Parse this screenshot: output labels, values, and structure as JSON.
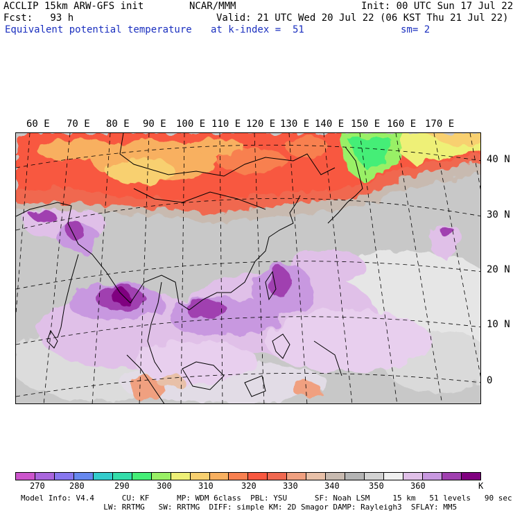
{
  "header": {
    "line1_left": "ACCLIP 15km ARW-GFS init",
    "line1_mid": "NCAR/MMM",
    "line1_right": "Init: 00 UTC Sun 17 Jul 22",
    "line2_left": "Fcst:   93 h",
    "line2_right": "Valid: 21 UTC Wed 20 Jul 22 (06 KST Thu 21 Jul 22)",
    "line3_left": "Equivalent potential temperature",
    "line3_mid": "at k-index =  51",
    "line3_right": "sm= 2"
  },
  "map": {
    "lon_labels": [
      "60 E",
      "70 E",
      "80 E",
      "90 E",
      "100 E",
      "110 E",
      "120 E",
      "130 E",
      "140 E",
      "150 E",
      "160 E",
      "170 E"
    ],
    "lat_labels": [
      "40 N",
      "30 N",
      "20 N",
      "10 N",
      "0"
    ]
  },
  "colorbar": {
    "colors": [
      "#cc55cc",
      "#aa66dd",
      "#8877ee",
      "#6688ee",
      "#33cccc",
      "#33ddaa",
      "#44ee77",
      "#99f066",
      "#eef077",
      "#f8d070",
      "#f8b060",
      "#f88050",
      "#f85840",
      "#f06850",
      "#f0a080",
      "#e8c0a8",
      "#c8bab0",
      "#b4b4b4",
      "#d2d2d2",
      "#f0f0f0",
      "#e0c0e8",
      "#c898e0",
      "#a040b0",
      "#800080"
    ],
    "labels": [
      "270",
      "280",
      "290",
      "300",
      "310",
      "320",
      "330",
      "340",
      "350",
      "360"
    ],
    "unit": "K"
  },
  "footer": {
    "line1": "Model Info: V4.4      CU: KF      MP: WDM 6class  PBL: YSU      SF: Noah LSM     15 km   51 levels   90 sec",
    "line2": "                  LW: RRTMG   SW: RRTMG  DIFF: simple KM: 2D Smagor DAMP: Rayleigh3  SFLAY: MM5"
  }
}
